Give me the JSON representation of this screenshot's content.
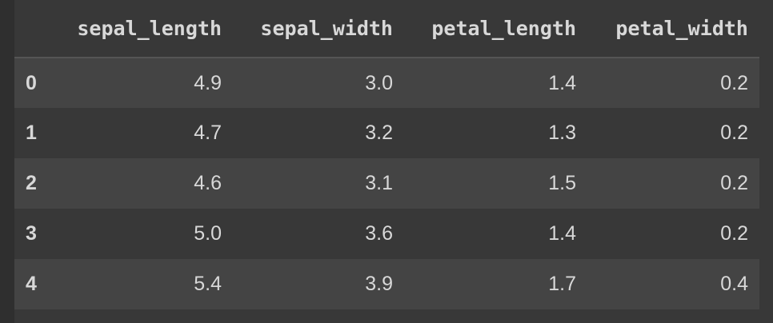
{
  "table": {
    "columns": [
      "",
      "sepal_length",
      "sepal_width",
      "petal_length",
      "petal_width"
    ],
    "rows": [
      [
        "0",
        "4.9",
        "3.0",
        "1.4",
        "0.2"
      ],
      [
        "1",
        "4.7",
        "3.2",
        "1.3",
        "0.2"
      ],
      [
        "2",
        "4.6",
        "3.1",
        "1.5",
        "0.2"
      ],
      [
        "3",
        "5.0",
        "3.6",
        "1.4",
        "0.2"
      ],
      [
        "4",
        "5.4",
        "3.9",
        "1.7",
        "0.4"
      ]
    ]
  }
}
